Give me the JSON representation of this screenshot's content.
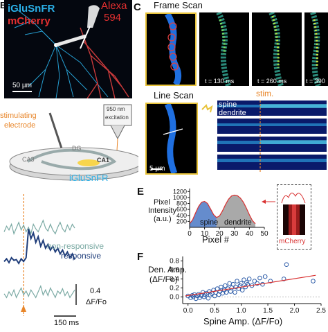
{
  "panels": {
    "B": {
      "letter": "B",
      "labels": {
        "iglusnfr": "iGluSnFR",
        "mcherry": "mCherry",
        "alexa": "Alexa",
        "alexa_num": "594",
        "scale": "50 µm"
      },
      "schematic": {
        "stimulating": "stimulating",
        "electrode": "electrode",
        "laser_nm": "950 nm",
        "laser_exc": "excitation",
        "ca3": "CA3",
        "dg": "DG",
        "ca1": "CA1",
        "iglusnfr": "iGluSnFR"
      },
      "colors": {
        "iglusnfr": "#2ab0e8",
        "mcherry": "#e53030",
        "alexa": "#e53030",
        "orange": "#e8862a"
      }
    },
    "C": {
      "letter": "C",
      "frame_scan_title": "Frame Scan",
      "times": [
        "t = 130 ms",
        "t = 260 ms",
        "t = 390"
      ],
      "line_scan_title": "Line Scan",
      "stim_label": "stim.",
      "rows": {
        "spine": "spine",
        "dendrite": "dendrite"
      },
      "scale": "5 µm"
    },
    "D": {
      "legend_nonresponsive": "non-responsive",
      "legend_responsive": "responsive",
      "scale_y": "0.4",
      "scale_y_unit": "ΔF/Fo",
      "scale_x": "150 ms",
      "colors": {
        "nonresponsive": "#7aa9a3",
        "responsive": "#1f3d7a",
        "stim": "#e8862a"
      }
    },
    "E": {
      "letter": "E",
      "ylabel_line1": "Pixel",
      "ylabel_line2": "Intensity",
      "ylabel_line3": "(a.u.)",
      "xlabel": "Pixel #",
      "region_spine": "spine",
      "region_dendrite": "dendrite",
      "inset_label": "mCherry",
      "colors": {
        "spine": "#4a78c4",
        "dendrite": "#9a9a9a",
        "curve": "#d93030"
      }
    },
    "F": {
      "letter": "F",
      "ylabel_line1": "Den. Amp.",
      "ylabel_line2": "(ΔF/Fo)",
      "xlabel": "Spine Amp. (ΔF/Fo)",
      "colors": {
        "points": "#2d5ca8",
        "fit": "#d93030"
      }
    }
  },
  "chart_data": [
    {
      "id": "E",
      "type": "area",
      "title": "",
      "xlabel": "Pixel #",
      "ylabel": "Pixel Intensity (a.u.)",
      "xlim": [
        0,
        50
      ],
      "ylim": [
        0,
        1300
      ],
      "xticks": [
        "0",
        "10",
        "20",
        "30",
        "40",
        "50"
      ],
      "yticks": [
        "200",
        "400",
        "600",
        "800",
        "1000",
        "1200"
      ],
      "x": [
        0,
        2,
        4,
        6,
        8,
        10,
        12,
        14,
        16,
        18,
        20,
        22,
        24,
        26,
        28,
        30,
        32,
        34,
        36,
        38,
        40,
        42,
        44
      ],
      "y": [
        120,
        250,
        480,
        700,
        840,
        870,
        800,
        620,
        430,
        330,
        380,
        550,
        760,
        940,
        1050,
        1080,
        1060,
        980,
        840,
        640,
        420,
        230,
        120
      ],
      "regions": [
        {
          "name": "spine",
          "from": 0,
          "to": 18
        },
        {
          "name": "dendrite",
          "from": 18,
          "to": 44
        }
      ]
    },
    {
      "id": "F",
      "type": "scatter",
      "title": "",
      "xlabel": "Spine Amp. (ΔF/Fo)",
      "ylabel": "Den. Amp. (ΔF/Fo)",
      "xlim": [
        -0.1,
        2.5
      ],
      "ylim": [
        -0.15,
        0.9
      ],
      "xticks": [
        "0.0",
        "0.5",
        "1.0",
        "1.5",
        "2.0",
        "2.5"
      ],
      "yticks": [
        "0.0",
        "0.2",
        "0.4",
        "0.6",
        "0.8"
      ],
      "points": [
        [
          0.0,
          0.02
        ],
        [
          0.05,
          -0.02
        ],
        [
          0.08,
          0.03
        ],
        [
          0.1,
          0.0
        ],
        [
          0.12,
          0.05
        ],
        [
          0.15,
          -0.04
        ],
        [
          0.18,
          0.02
        ],
        [
          0.2,
          0.06
        ],
        [
          0.22,
          -0.02
        ],
        [
          0.25,
          0.03
        ],
        [
          0.28,
          0.1
        ],
        [
          0.3,
          0.0
        ],
        [
          0.32,
          0.05
        ],
        [
          0.35,
          0.08
        ],
        [
          0.38,
          -0.03
        ],
        [
          0.4,
          0.12
        ],
        [
          0.42,
          0.04
        ],
        [
          0.45,
          0.07
        ],
        [
          0.48,
          0.15
        ],
        [
          0.5,
          0.02
        ],
        [
          0.52,
          0.1
        ],
        [
          0.55,
          0.18
        ],
        [
          0.58,
          0.05
        ],
        [
          0.6,
          0.12
        ],
        [
          0.62,
          0.22
        ],
        [
          0.65,
          0.08
        ],
        [
          0.68,
          0.15
        ],
        [
          0.7,
          0.25
        ],
        [
          0.72,
          0.1
        ],
        [
          0.75,
          0.18
        ],
        [
          0.78,
          0.3
        ],
        [
          0.8,
          0.12
        ],
        [
          0.82,
          0.2
        ],
        [
          0.85,
          0.28
        ],
        [
          0.88,
          0.1
        ],
        [
          0.9,
          0.22
        ],
        [
          0.92,
          0.35
        ],
        [
          0.95,
          0.18
        ],
        [
          0.98,
          0.25
        ],
        [
          1.0,
          0.3
        ],
        [
          1.02,
          0.15
        ],
        [
          1.05,
          0.38
        ],
        [
          1.08,
          0.22
        ],
        [
          1.1,
          0.32
        ],
        [
          1.12,
          0.28
        ],
        [
          1.15,
          0.4
        ],
        [
          1.2,
          0.25
        ],
        [
          1.25,
          0.35
        ],
        [
          1.3,
          0.3
        ],
        [
          1.35,
          0.42
        ],
        [
          1.4,
          0.28
        ],
        [
          1.45,
          0.45
        ],
        [
          1.55,
          0.35
        ],
        [
          1.8,
          0.4
        ],
        [
          1.85,
          0.72
        ],
        [
          2.35,
          0.35
        ]
      ],
      "fit": [
        [
          -0.05,
          0.02
        ],
        [
          2.4,
          0.48
        ]
      ]
    },
    {
      "id": "D",
      "type": "line",
      "title": "",
      "xlabel": "",
      "ylabel": "",
      "series": [
        {
          "name": "non-responsive",
          "values": [
            0.1,
            0.25,
            0.15,
            0.3,
            0.05,
            0.2,
            0.35,
            0.15,
            0.28,
            0.1,
            0.22,
            0.05,
            0.3,
            0.18,
            0.1,
            0.25,
            0.4,
            0.2,
            0.12,
            0.3,
            0.15,
            0.05,
            0.22,
            0.35,
            0.18,
            0.1,
            0.28,
            0.15,
            0.3,
            0.2
          ]
        },
        {
          "name": "responsive",
          "values": [
            0.05,
            0.12,
            0.02,
            0.15,
            0.08,
            0.1,
            0.0,
            0.12,
            0.05,
            0.15,
            0.9,
            0.65,
            0.8,
            0.55,
            0.7,
            0.45,
            0.6,
            0.4,
            0.5,
            0.35,
            0.45,
            0.3,
            0.4,
            0.25,
            0.35,
            0.2,
            0.3,
            0.15,
            0.25,
            0.1
          ]
        },
        {
          "name": "non-responsive-2",
          "values": [
            0.15,
            0.05,
            0.2,
            0.1,
            0.25,
            0.05,
            0.18,
            0.3,
            0.12,
            0.22,
            0.08,
            0.25,
            0.15,
            0.05,
            0.2,
            0.35,
            0.12,
            0.25,
            0.1,
            0.3,
            0.18,
            0.05,
            0.22,
            0.15,
            0.28,
            0.1,
            0.2,
            0.05,
            0.15,
            0.25
          ]
        }
      ]
    }
  ]
}
